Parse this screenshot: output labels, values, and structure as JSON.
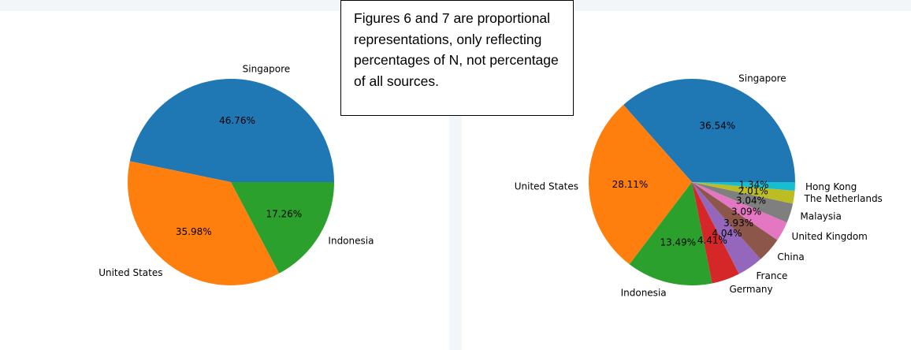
{
  "note": {
    "text": "Figures 6 and 7 are proportional representations, only reflecting percentages of N, not percentage of all sources."
  },
  "chart_data": [
    {
      "type": "pie",
      "title": "",
      "slices": [
        {
          "label": "Singapore",
          "value": 46.76,
          "pct_label": "46.76%",
          "color": "#1f77b4"
        },
        {
          "label": "United States",
          "value": 35.98,
          "pct_label": "35.98%",
          "color": "#ff7f0e"
        },
        {
          "label": "Indonesia",
          "value": 17.26,
          "pct_label": "17.26%",
          "color": "#2ca02c"
        }
      ]
    },
    {
      "type": "pie",
      "title": "",
      "slices": [
        {
          "label": "Singapore",
          "value": 36.54,
          "pct_label": "36.54%",
          "color": "#1f77b4"
        },
        {
          "label": "United States",
          "value": 28.11,
          "pct_label": "28.11%",
          "color": "#ff7f0e"
        },
        {
          "label": "Indonesia",
          "value": 13.49,
          "pct_label": "13.49%",
          "color": "#2ca02c"
        },
        {
          "label": "Germany",
          "value": 4.41,
          "pct_label": "4.41%",
          "color": "#d62728"
        },
        {
          "label": "France",
          "value": 4.04,
          "pct_label": "4.04%",
          "color": "#9467bd"
        },
        {
          "label": "China",
          "value": 3.93,
          "pct_label": "3.93%",
          "color": "#8c564b"
        },
        {
          "label": "United Kingdom",
          "value": 3.09,
          "pct_label": "3.09%",
          "color": "#e377c2"
        },
        {
          "label": "Malaysia",
          "value": 3.04,
          "pct_label": "3.04%",
          "color": "#7f7f7f"
        },
        {
          "label": "The Netherlands",
          "value": 2.01,
          "pct_label": "2.01%",
          "color": "#bcbd22"
        },
        {
          "label": "Hong Kong",
          "value": 1.34,
          "pct_label": "1.34%",
          "color": "#17becf"
        }
      ]
    }
  ]
}
